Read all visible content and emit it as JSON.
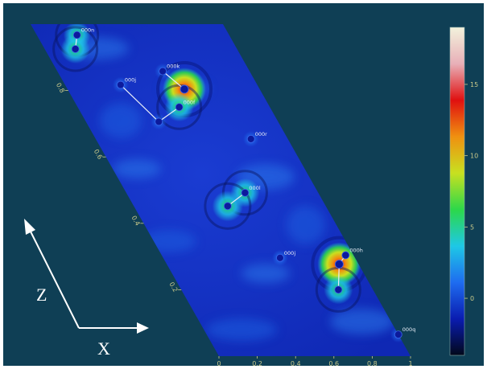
{
  "chart_data": {
    "type": "heatmap",
    "title": "",
    "colors": {
      "background": "#0f3f55",
      "field": "#1432c8",
      "stops": [
        "#02081a",
        "#0a1cb0",
        "#1e6cf0",
        "#1ec8e6",
        "#2cd84a",
        "#c8e020",
        "#f09010",
        "#e01010",
        "#e8b0b8",
        "#f2f2dc"
      ]
    },
    "colorbar": {
      "range": [
        -4,
        19
      ],
      "ticks": [
        {
          "value": 0,
          "label": "0"
        },
        {
          "value": 5,
          "label": "5"
        },
        {
          "value": 10,
          "label": "10"
        },
        {
          "value": 15,
          "label": "15"
        }
      ]
    },
    "x_axis": {
      "range": [
        0,
        1
      ],
      "ticks": [
        {
          "value": 0,
          "label": "0"
        },
        {
          "value": 0.2,
          "label": "0.2"
        },
        {
          "value": 0.4,
          "label": "0.4"
        },
        {
          "value": 0.6,
          "label": "0.6"
        },
        {
          "value": 0.8,
          "label": "0.8"
        },
        {
          "value": 1,
          "label": "1"
        }
      ]
    },
    "z_axis": {
      "range": [
        0,
        1
      ],
      "ticks": [
        {
          "value": 0.2,
          "label": "0.2"
        },
        {
          "value": 0.4,
          "label": "0.4"
        },
        {
          "value": 0.6,
          "label": "0.6"
        },
        {
          "value": 0.8,
          "label": "0.8"
        }
      ]
    },
    "direction_labels": {
      "x": "X",
      "z": "Z"
    },
    "peaks": [
      {
        "label": "000n",
        "x": 0.21,
        "z": 0.967,
        "intensity": 4
      },
      {
        "label": "",
        "x": 0.16,
        "z": 0.925,
        "intensity": 5
      },
      {
        "label": "000k",
        "x": 0.55,
        "z": 0.858,
        "intensity": 1
      },
      {
        "label": "000j",
        "x": 0.29,
        "z": 0.817,
        "intensity": 1
      },
      {
        "label": "",
        "x": 0.61,
        "z": 0.804,
        "intensity": 16
      },
      {
        "label": "000f",
        "x": 0.53,
        "z": 0.75,
        "intensity": 5
      },
      {
        "label": "",
        "x": 0.38,
        "z": 0.706,
        "intensity": 1
      },
      {
        "label": "000r",
        "x": 0.81,
        "z": 0.654,
        "intensity": 1
      },
      {
        "label": "000l",
        "x": 0.62,
        "z": 0.492,
        "intensity": 5
      },
      {
        "label": "",
        "x": 0.49,
        "z": 0.452,
        "intensity": 6
      },
      {
        "label": "000h",
        "x": 0.96,
        "z": 0.304,
        "intensity": 1
      },
      {
        "label": "000j",
        "x": 0.61,
        "z": 0.296,
        "intensity": 1
      },
      {
        "label": "",
        "x": 0.9,
        "z": 0.277,
        "intensity": 17
      },
      {
        "label": "",
        "x": 0.82,
        "z": 0.2,
        "intensity": 5
      },
      {
        "label": "000q",
        "x": 1.0,
        "z": 0.065,
        "intensity": 1
      }
    ],
    "bonds": [
      [
        0,
        1
      ],
      [
        2,
        4
      ],
      [
        3,
        6
      ],
      [
        6,
        5
      ],
      [
        8,
        9
      ],
      [
        10,
        12
      ],
      [
        12,
        13
      ]
    ]
  }
}
